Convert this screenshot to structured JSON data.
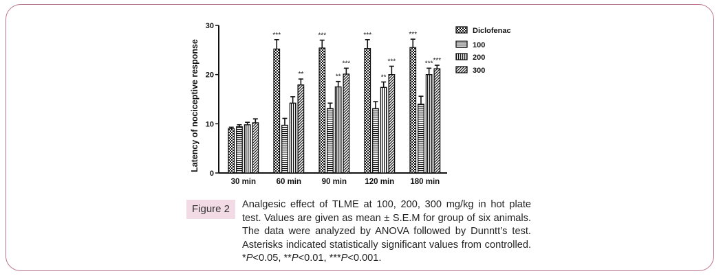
{
  "chart_data": {
    "type": "bar",
    "title": "",
    "xlabel": "",
    "ylabel": "Latency of nociceptive response",
    "ylim": [
      0,
      30
    ],
    "yticks": [
      "0",
      "10",
      "20",
      "30"
    ],
    "categories": [
      "30 min",
      "60 min",
      "90 min",
      "120 min",
      "180 min"
    ],
    "series": [
      {
        "name": "Diclofenac",
        "pattern": "checker",
        "values": [
          9.0,
          25.2,
          25.4,
          25.3,
          25.5
        ],
        "errors": [
          0.3,
          1.9,
          1.6,
          1.8,
          1.7
        ],
        "stars": [
          "",
          "***",
          "***",
          "***",
          "***"
        ]
      },
      {
        "name": "100",
        "pattern": "hlines",
        "values": [
          9.4,
          9.7,
          13.1,
          13.1,
          14.0
        ],
        "errors": [
          0.4,
          1.4,
          1.1,
          1.4,
          1.6
        ],
        "stars": [
          "",
          "",
          "",
          "",
          ""
        ]
      },
      {
        "name": "200",
        "pattern": "vlines",
        "values": [
          9.8,
          14.2,
          17.5,
          17.4,
          20.0
        ],
        "errors": [
          0.5,
          1.3,
          1.1,
          1.1,
          1.3
        ],
        "stars": [
          "",
          "",
          "**",
          "**",
          "***"
        ]
      },
      {
        "name": "300",
        "pattern": "diag",
        "values": [
          10.2,
          17.9,
          20.1,
          20.0,
          21.2
        ],
        "errors": [
          0.8,
          1.2,
          1.2,
          1.7,
          0.7
        ],
        "stars": [
          "",
          "**",
          "***",
          "***",
          "***"
        ]
      }
    ],
    "legend_position": "top-right"
  },
  "figure": {
    "label": "Figure 2",
    "caption": {
      "line1": "Analgesic effect of TLME at 100, 200, 300 mg/kg in hot plate test. Values are given as mean ± S.E.M for group of six animals. The data were analyzed by ANOVA followed by Dunntt’s test. Asterisks indicated statistically significant values from controlled. *",
      "p1": "P",
      "t1": "<0.05, **",
      "p2": "P",
      "t2": "<0.01, ***",
      "p3": "P",
      "t3": "<0.001."
    }
  }
}
